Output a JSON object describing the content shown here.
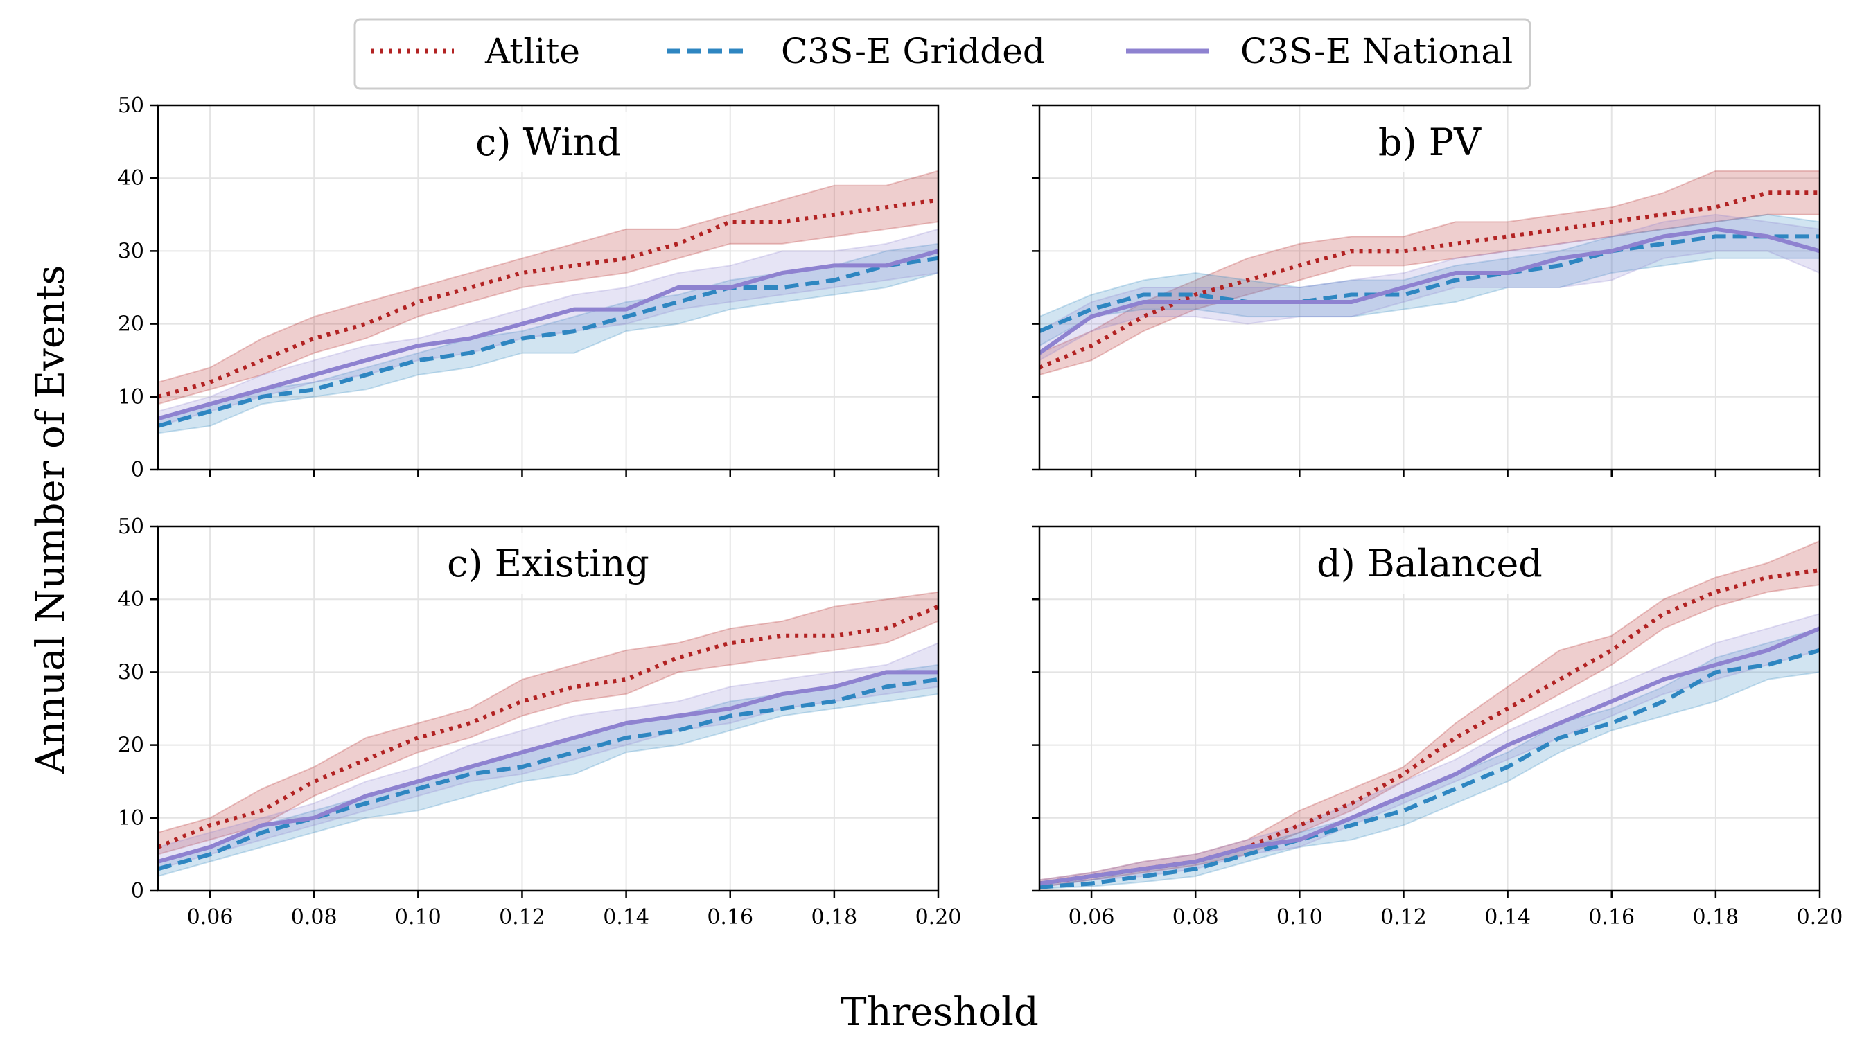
{
  "figure": {
    "xlabel": "Threshold",
    "ylabel": "Annual Number of Events"
  },
  "legend": {
    "placement": "top-center",
    "items": [
      {
        "label": "Atlite",
        "color": "#b22222",
        "style": "dotted"
      },
      {
        "label": "C3S-E Gridded",
        "color": "#2e86c1",
        "style": "dashed"
      },
      {
        "label": "C3S-E National",
        "color": "#8e82d0",
        "style": "solid"
      }
    ]
  },
  "chart_data": [
    {
      "type": "line",
      "title": "c) Wind",
      "x": [
        0.05,
        0.06,
        0.07,
        0.08,
        0.09,
        0.1,
        0.11,
        0.12,
        0.13,
        0.14,
        0.15,
        0.16,
        0.17,
        0.18,
        0.19,
        0.2
      ],
      "xticks": [
        "0.06",
        "0.08",
        "0.10",
        "0.12",
        "0.14",
        "0.16",
        "0.18",
        "0.20"
      ],
      "xlim": [
        0.05,
        0.2
      ],
      "ylim": [
        0,
        50
      ],
      "yticks": [
        0,
        10,
        20,
        30,
        40,
        50
      ],
      "grid": true,
      "series": [
        {
          "name": "Atlite",
          "values": [
            10,
            12,
            15,
            18,
            20,
            23,
            25,
            27,
            28,
            29,
            31,
            34,
            34,
            35,
            36,
            37
          ],
          "lower": [
            9,
            11,
            13,
            16,
            18,
            21,
            23,
            25,
            26,
            27,
            29,
            31,
            31,
            32,
            33,
            34
          ],
          "upper": [
            12,
            14,
            18,
            21,
            23,
            25,
            27,
            29,
            31,
            33,
            33,
            35,
            37,
            39,
            39,
            41
          ]
        },
        {
          "name": "C3S-E Gridded",
          "values": [
            6,
            8,
            10,
            11,
            13,
            15,
            16,
            18,
            19,
            21,
            23,
            25,
            25,
            26,
            28,
            29
          ],
          "lower": [
            5,
            6,
            9,
            10,
            11,
            13,
            14,
            16,
            16,
            19,
            20,
            22,
            23,
            24,
            25,
            27
          ],
          "upper": [
            7,
            9,
            11,
            12,
            14,
            16,
            18,
            19,
            21,
            23,
            24,
            26,
            27,
            28,
            30,
            31
          ]
        },
        {
          "name": "C3S-E National",
          "values": [
            7,
            9,
            11,
            13,
            15,
            17,
            18,
            20,
            22,
            22,
            25,
            25,
            27,
            28,
            28,
            30
          ],
          "lower": [
            6,
            8,
            10,
            12,
            13,
            15,
            16,
            18,
            19,
            20,
            22,
            23,
            24,
            25,
            26,
            27
          ],
          "upper": [
            8,
            10,
            13,
            15,
            17,
            18,
            20,
            22,
            24,
            25,
            27,
            28,
            30,
            30,
            31,
            33
          ]
        }
      ]
    },
    {
      "type": "line",
      "title": "b) PV",
      "x": [
        0.05,
        0.06,
        0.07,
        0.08,
        0.09,
        0.1,
        0.11,
        0.12,
        0.13,
        0.14,
        0.15,
        0.16,
        0.17,
        0.18,
        0.19,
        0.2
      ],
      "xticks": [
        "0.06",
        "0.08",
        "0.10",
        "0.12",
        "0.14",
        "0.16",
        "0.18",
        "0.20"
      ],
      "xlim": [
        0.05,
        0.2
      ],
      "ylim": [
        0,
        50
      ],
      "yticks": [
        0,
        10,
        20,
        30,
        40,
        50
      ],
      "grid": true,
      "series": [
        {
          "name": "Atlite",
          "values": [
            14,
            17,
            21,
            24,
            26,
            28,
            30,
            30,
            31,
            32,
            33,
            34,
            35,
            36,
            38,
            38
          ],
          "lower": [
            13,
            15,
            19,
            22,
            24,
            26,
            28,
            28,
            29,
            30,
            31,
            32,
            33,
            34,
            35,
            35
          ],
          "upper": [
            16,
            19,
            23,
            26,
            29,
            31,
            32,
            32,
            34,
            34,
            35,
            36,
            38,
            41,
            41,
            41
          ]
        },
        {
          "name": "C3S-E Gridded",
          "values": [
            19,
            22,
            24,
            24,
            23,
            23,
            24,
            24,
            26,
            27,
            28,
            30,
            31,
            32,
            32,
            32
          ],
          "lower": [
            17,
            21,
            22,
            22,
            21,
            21,
            21,
            22,
            23,
            25,
            25,
            27,
            28,
            29,
            29,
            29
          ],
          "upper": [
            21,
            24,
            26,
            27,
            26,
            25,
            26,
            26,
            28,
            29,
            30,
            32,
            33,
            34,
            35,
            34
          ]
        },
        {
          "name": "C3S-E National",
          "values": [
            16,
            21,
            23,
            23,
            23,
            23,
            23,
            25,
            27,
            27,
            29,
            30,
            32,
            33,
            32,
            30
          ],
          "lower": [
            15,
            19,
            21,
            21,
            20,
            21,
            21,
            23,
            25,
            25,
            25,
            26,
            29,
            30,
            30,
            27
          ],
          "upper": [
            19,
            23,
            25,
            25,
            25,
            25,
            26,
            27,
            29,
            30,
            31,
            32,
            34,
            35,
            34,
            33
          ]
        }
      ]
    },
    {
      "type": "line",
      "title": "c) Existing",
      "x": [
        0.05,
        0.06,
        0.07,
        0.08,
        0.09,
        0.1,
        0.11,
        0.12,
        0.13,
        0.14,
        0.15,
        0.16,
        0.17,
        0.18,
        0.19,
        0.2
      ],
      "xticks": [
        "0.06",
        "0.08",
        "0.10",
        "0.12",
        "0.14",
        "0.16",
        "0.18",
        "0.20"
      ],
      "xlim": [
        0.05,
        0.2
      ],
      "ylim": [
        0,
        50
      ],
      "yticks": [
        0,
        10,
        20,
        30,
        40,
        50
      ],
      "grid": true,
      "series": [
        {
          "name": "Atlite",
          "values": [
            6,
            9,
            11,
            15,
            18,
            21,
            23,
            26,
            28,
            29,
            32,
            34,
            35,
            35,
            36,
            39
          ],
          "lower": [
            5,
            7,
            9,
            13,
            16,
            19,
            21,
            24,
            26,
            27,
            30,
            31,
            32,
            33,
            34,
            37
          ],
          "upper": [
            8,
            10,
            14,
            17,
            21,
            23,
            25,
            29,
            31,
            33,
            34,
            36,
            37,
            39,
            40,
            41
          ]
        },
        {
          "name": "C3S-E Gridded",
          "values": [
            3,
            5,
            8,
            10,
            12,
            14,
            16,
            17,
            19,
            21,
            22,
            24,
            25,
            26,
            28,
            29
          ],
          "lower": [
            2,
            4,
            6,
            8,
            10,
            11,
            13,
            15,
            16,
            19,
            20,
            22,
            24,
            25,
            26,
            27
          ],
          "upper": [
            4,
            6,
            9,
            11,
            13,
            15,
            17,
            19,
            21,
            23,
            24,
            26,
            27,
            28,
            30,
            31
          ]
        },
        {
          "name": "C3S-E National",
          "values": [
            4,
            6,
            9,
            10,
            13,
            15,
            17,
            19,
            21,
            23,
            24,
            25,
            27,
            28,
            30,
            30
          ],
          "lower": [
            3,
            5,
            7,
            9,
            11,
            13,
            15,
            16,
            18,
            20,
            22,
            23,
            25,
            26,
            27,
            28
          ],
          "upper": [
            6,
            8,
            10,
            12,
            15,
            17,
            20,
            22,
            24,
            25,
            26,
            28,
            29,
            30,
            31,
            34
          ]
        }
      ]
    },
    {
      "type": "line",
      "title": "d) Balanced",
      "x": [
        0.05,
        0.06,
        0.07,
        0.08,
        0.09,
        0.1,
        0.11,
        0.12,
        0.13,
        0.14,
        0.15,
        0.16,
        0.17,
        0.18,
        0.19,
        0.2
      ],
      "xticks": [
        "0.06",
        "0.08",
        "0.10",
        "0.12",
        "0.14",
        "0.16",
        "0.18",
        "0.20"
      ],
      "xlim": [
        0.05,
        0.2
      ],
      "ylim": [
        0,
        50
      ],
      "yticks": [
        0,
        10,
        20,
        30,
        40,
        50
      ],
      "grid": true,
      "series": [
        {
          "name": "Atlite",
          "values": [
            1,
            2,
            3,
            4,
            6,
            9,
            12,
            16,
            21,
            25,
            29,
            33,
            38,
            41,
            43,
            44
          ],
          "lower": [
            0.5,
            1.5,
            2.5,
            3.5,
            5,
            8,
            11,
            15,
            19,
            23,
            27,
            31,
            36,
            39,
            41,
            42
          ],
          "upper": [
            1.5,
            2.5,
            4,
            5,
            7,
            11,
            14,
            17,
            23,
            28,
            33,
            35,
            40,
            43,
            45,
            48
          ]
        },
        {
          "name": "C3S-E Gridded",
          "values": [
            0.5,
            1,
            2,
            3,
            5,
            7,
            9,
            11,
            14,
            17,
            21,
            23,
            26,
            30,
            31,
            33
          ],
          "lower": [
            0.3,
            0.6,
            1.2,
            2,
            4,
            6,
            7,
            9,
            12,
            15,
            19,
            22,
            24,
            26,
            29,
            30
          ],
          "upper": [
            1,
            1.5,
            3,
            4,
            6,
            8,
            10,
            13,
            16,
            19,
            23,
            25,
            28,
            32,
            34,
            36
          ]
        },
        {
          "name": "C3S-E National",
          "values": [
            1,
            2,
            3,
            4,
            6,
            7,
            10,
            13,
            16,
            20,
            23,
            26,
            29,
            31,
            33,
            36
          ],
          "lower": [
            0.5,
            1.5,
            2,
            3,
            5,
            6,
            9,
            12,
            15,
            18,
            21,
            24,
            27,
            29,
            31,
            33
          ],
          "upper": [
            1.5,
            2.5,
            4,
            5,
            7,
            9,
            12,
            15,
            18,
            22,
            25,
            28,
            31,
            34,
            36,
            38
          ]
        }
      ]
    }
  ]
}
